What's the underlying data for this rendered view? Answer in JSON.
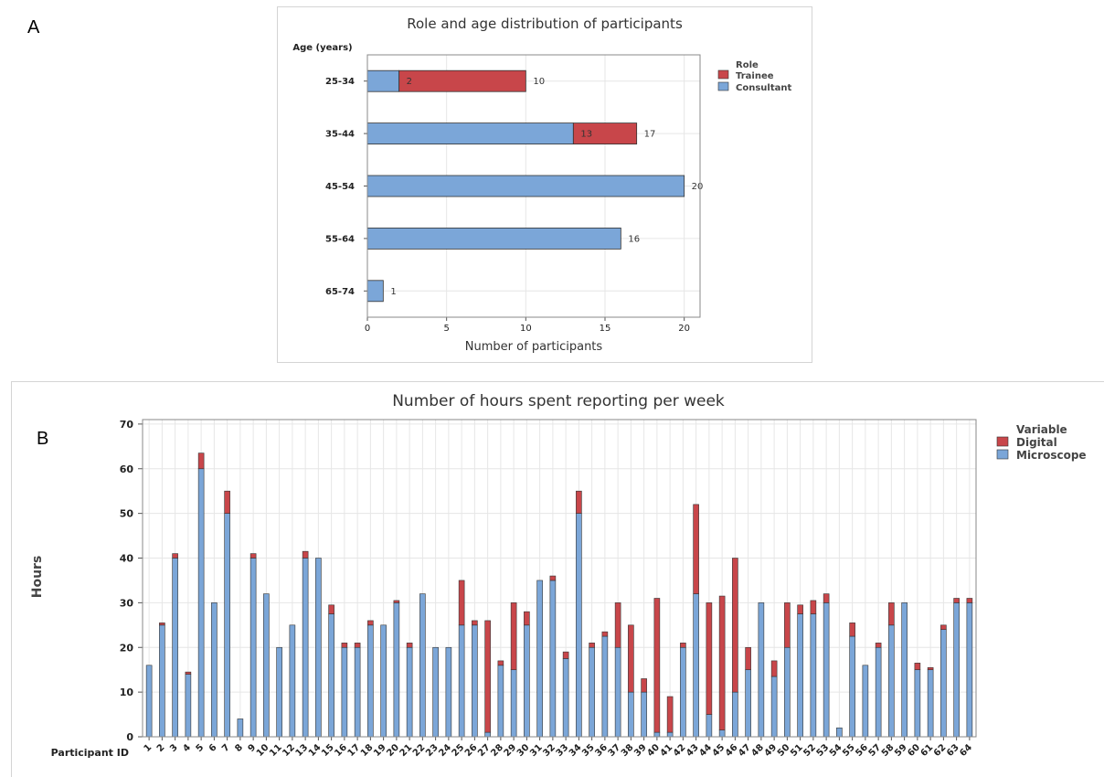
{
  "panel_labels": {
    "a": "A",
    "b": "B"
  },
  "colors": {
    "trainee": "#c8464a",
    "consultant": "#7ba6d8",
    "digital": "#c8464a",
    "microscope": "#7ba6d8",
    "grid": "#e6e6e6",
    "axis": "#555555"
  },
  "chart_data": [
    {
      "type": "bar",
      "orientation": "horizontal",
      "stacked": true,
      "title": "Role and age distribution of participants",
      "xlabel": "Number of participants",
      "ylabel": "Age (years)",
      "xlim": [
        0,
        21
      ],
      "xticks": [
        "0",
        "5",
        "10",
        "15",
        "20"
      ],
      "categories": [
        "25-34",
        "35-44",
        "45-54",
        "55-64",
        "65-74"
      ],
      "series": [
        {
          "name": "Consultant",
          "values": [
            2,
            13,
            20,
            16,
            1
          ]
        },
        {
          "name": "Trainee",
          "values": [
            8,
            4,
            0,
            0,
            0
          ]
        }
      ],
      "segment_labels": [
        "2",
        "13",
        "",
        "",
        ""
      ],
      "total_labels": [
        "10",
        "17",
        "20",
        "16",
        "1"
      ],
      "legend": {
        "title": "Role",
        "items": [
          "Trainee",
          "Consultant"
        ],
        "position": "right"
      },
      "grid": true
    },
    {
      "type": "bar",
      "stacked": true,
      "title": "Number of hours spent reporting per week",
      "xlabel": "Participant ID",
      "ylabel": "Hours",
      "ylim": [
        0,
        71
      ],
      "yticks": [
        "0",
        "10",
        "20",
        "30",
        "40",
        "50",
        "60",
        "70"
      ],
      "categories": [
        "1",
        "2",
        "3",
        "4",
        "5",
        "6",
        "7",
        "8",
        "9",
        "10",
        "11",
        "12",
        "13",
        "14",
        "15",
        "16",
        "17",
        "18",
        "19",
        "20",
        "21",
        "22",
        "23",
        "24",
        "25",
        "26",
        "27",
        "28",
        "29",
        "30",
        "31",
        "32",
        "33",
        "34",
        "35",
        "36",
        "37",
        "38",
        "39",
        "40",
        "41",
        "42",
        "43",
        "44",
        "45",
        "46",
        "47",
        "48",
        "49",
        "50",
        "51",
        "52",
        "53",
        "54",
        "55",
        "56",
        "57",
        "58",
        "59",
        "60",
        "61",
        "62",
        "63",
        "64"
      ],
      "series": [
        {
          "name": "Microscope",
          "values": [
            16,
            25,
            40,
            14,
            60,
            30,
            50,
            4,
            40,
            32,
            20,
            25,
            40,
            40,
            27.5,
            20,
            20,
            25,
            25,
            30,
            20,
            32,
            20,
            20,
            25,
            25,
            1,
            16,
            15,
            25,
            35,
            35,
            17.5,
            50,
            20,
            22.5,
            20,
            10,
            10,
            1,
            1,
            20,
            32,
            5,
            1.5,
            10,
            15,
            30,
            13.5,
            20,
            27.5,
            27.5,
            30,
            2,
            22.5,
            16,
            20,
            25,
            30,
            15,
            15,
            24,
            30,
            30
          ]
        },
        {
          "name": "Digital",
          "values": [
            0,
            0.5,
            1,
            0.5,
            3.5,
            0,
            5,
            0,
            1,
            0,
            0,
            0,
            1.5,
            0,
            2,
            1,
            1,
            1,
            0,
            0.5,
            1,
            0,
            0,
            0,
            10,
            1,
            25,
            1,
            15,
            3,
            0,
            1,
            1.5,
            5,
            1,
            1,
            10,
            15,
            3,
            30,
            8,
            1,
            20,
            25,
            30,
            30,
            5,
            0,
            3.5,
            10,
            2,
            3,
            2,
            0,
            3,
            0,
            1,
            5,
            0,
            1.5,
            0.5,
            1,
            1,
            1
          ]
        }
      ],
      "legend": {
        "title": "Variable",
        "items": [
          "Digital",
          "Microscope"
        ],
        "position": "right"
      },
      "grid": true
    }
  ]
}
